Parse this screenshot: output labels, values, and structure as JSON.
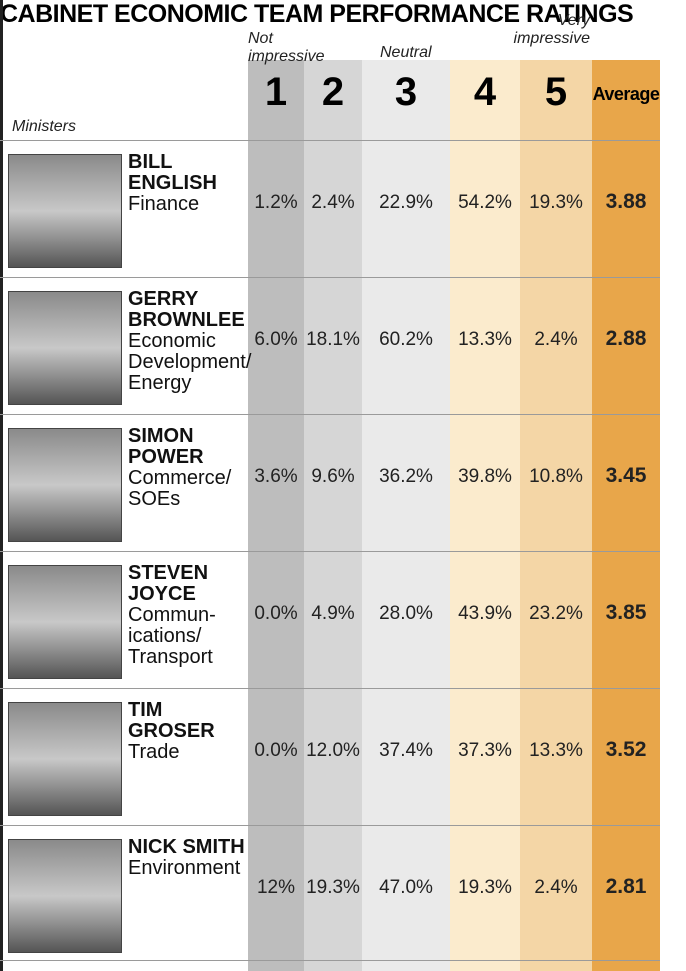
{
  "header": {
    "title": "CABINET ECONOMIC TEAM PERFORMANCE RATINGS",
    "scale": {
      "low": "Not impressive",
      "mid": "Neutral",
      "high": "Very impressive"
    },
    "columns": [
      "1",
      "2",
      "3",
      "4",
      "5",
      "Average"
    ],
    "ministers_label": "Ministers"
  },
  "rows": [
    {
      "name": [
        "BILL",
        "ENGLISH"
      ],
      "portfolio": [
        "Finance"
      ],
      "values": [
        "1.2%",
        "2.4%",
        "22.9%",
        "54.2%",
        "19.3%"
      ],
      "average": "3.88"
    },
    {
      "name": [
        "GERRY",
        "BROWNLEE"
      ],
      "portfolio": [
        "Economic",
        "Development/",
        "Energy"
      ],
      "values": [
        "6.0%",
        "18.1%",
        "60.2%",
        "13.3%",
        "2.4%"
      ],
      "average": "2.88"
    },
    {
      "name": [
        "SIMON",
        "POWER"
      ],
      "portfolio": [
        "Commerce/",
        "SOEs"
      ],
      "values": [
        "3.6%",
        "9.6%",
        "36.2%",
        "39.8%",
        "10.8%"
      ],
      "average": "3.45"
    },
    {
      "name": [
        "STEVEN",
        "JOYCE"
      ],
      "portfolio": [
        "Commun-",
        "ications/",
        "Transport"
      ],
      "values": [
        "0.0%",
        "4.9%",
        "28.0%",
        "43.9%",
        "23.2%"
      ],
      "average": "3.85"
    },
    {
      "name": [
        "TIM GROSER"
      ],
      "portfolio": [
        "Trade"
      ],
      "values": [
        "0.0%",
        "12.0%",
        "37.4%",
        "37.3%",
        "13.3%"
      ],
      "average": "3.52"
    },
    {
      "name": [
        "NICK SMITH"
      ],
      "portfolio": [
        "Environment"
      ],
      "values": [
        "12%",
        "19.3%",
        "47.0%",
        "19.3%",
        "2.4%"
      ],
      "average": "2.81"
    }
  ]
}
